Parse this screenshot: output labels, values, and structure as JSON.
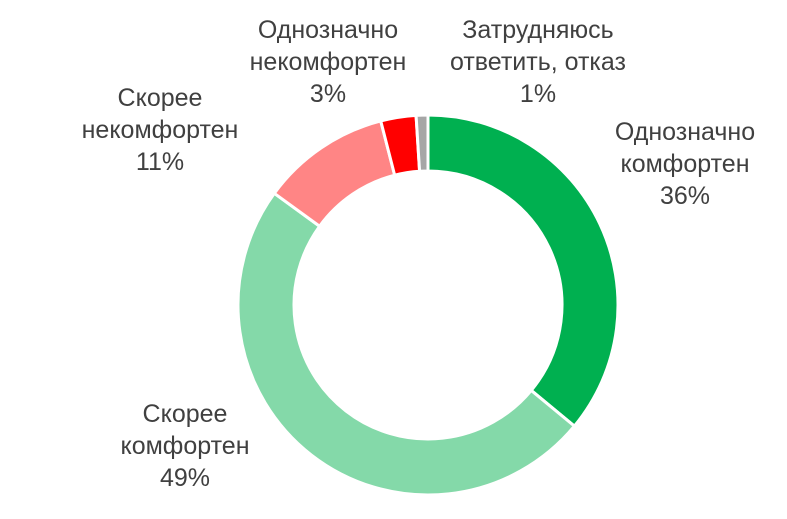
{
  "chart_data": {
    "type": "pie",
    "donut": true,
    "title": "",
    "slices": [
      {
        "label_lines": [
          "Однозначно",
          "комфортен"
        ],
        "value": 36,
        "value_label": "36%",
        "color": "#00b050"
      },
      {
        "label_lines": [
          "Скорее",
          "комфортен"
        ],
        "value": 49,
        "value_label": "49%",
        "color": "#84d9a9"
      },
      {
        "label_lines": [
          "Скорее",
          "некомфортен"
        ],
        "value": 11,
        "value_label": "11%",
        "color": "#ff8585"
      },
      {
        "label_lines": [
          "Однозначно",
          "некомфортен"
        ],
        "value": 3,
        "value_label": "3%",
        "color": "#ff0000"
      },
      {
        "label_lines": [
          "Затрудняюсь",
          "ответить, отказ"
        ],
        "value": 1,
        "value_label": "1%",
        "color": "#a6a6a6"
      }
    ]
  }
}
